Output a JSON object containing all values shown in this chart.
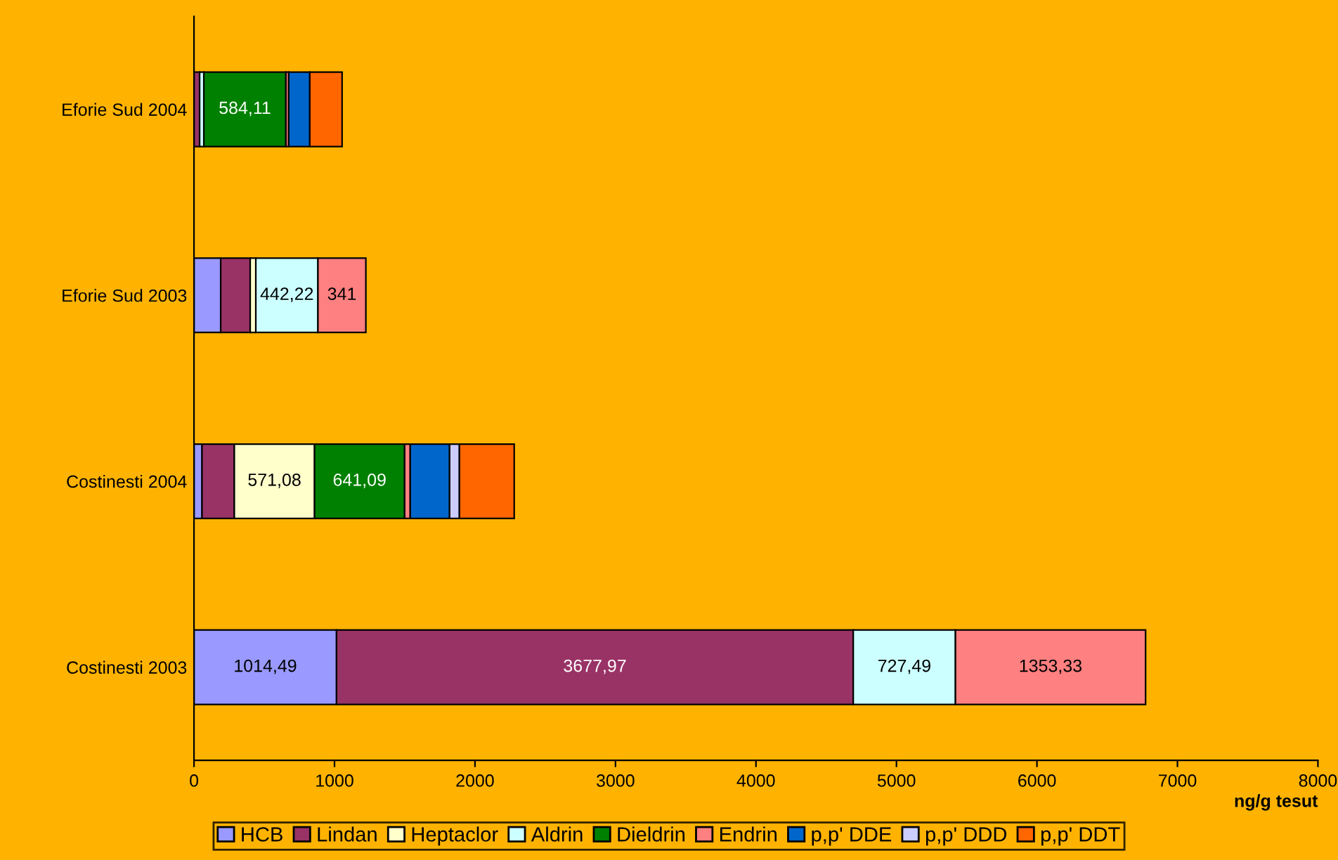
{
  "chart_data": {
    "type": "bar",
    "orientation": "horizontal",
    "stacked": true,
    "xlabel": "ng/g tesut",
    "categories": [
      "Eforie Sud 2004",
      "Eforie Sud 2003",
      "Costinesti 2004",
      "Costinesti 2003"
    ],
    "series": [
      {
        "name": "HCB",
        "color": "#9999ff",
        "values": [
          null,
          190,
          57,
          1014.49
        ],
        "value_labels": [
          null,
          null,
          null,
          "1014,49"
        ]
      },
      {
        "name": "Lindan",
        "color": "#993366",
        "values": [
          40,
          210,
          230,
          3677.97
        ],
        "value_labels": [
          null,
          null,
          null,
          "3677,97"
        ]
      },
      {
        "name": "Heptaclor",
        "color": "#ffffcc",
        "values": [
          null,
          40,
          571.08,
          null
        ],
        "value_labels": [
          null,
          null,
          "571,08",
          null
        ]
      },
      {
        "name": "Aldrin",
        "color": "#ccffff",
        "values": [
          30,
          442.22,
          null,
          727.49
        ],
        "value_labels": [
          null,
          "442,22",
          null,
          "727,49"
        ]
      },
      {
        "name": "Dieldrin",
        "color": "#008000",
        "values": [
          584.11,
          null,
          641.09,
          null
        ],
        "value_labels": [
          "584,11",
          null,
          "641,09",
          null
        ]
      },
      {
        "name": "Endrin",
        "color": "#ff8080",
        "values": [
          20,
          341,
          40,
          1353.33
        ],
        "value_labels": [
          null,
          "341",
          null,
          "1353,33"
        ]
      },
      {
        "name": "p,p' DDE",
        "color": "#0066cc",
        "values": [
          150,
          null,
          280,
          null
        ],
        "value_labels": [
          null,
          null,
          null,
          null
        ]
      },
      {
        "name": "p,p' DDD",
        "color": "#ccccff",
        "values": [
          null,
          null,
          70,
          null
        ],
        "value_labels": [
          null,
          null,
          null,
          null
        ]
      },
      {
        "name": "p,p' DDT",
        "color": "#ff6600",
        "values": [
          230,
          null,
          390,
          null
        ],
        "value_labels": [
          null,
          null,
          null,
          null
        ]
      }
    ],
    "xlim": [
      0,
      8000
    ],
    "xticks": [
      0,
      1000,
      2000,
      3000,
      4000,
      5000,
      6000,
      7000,
      8000
    ],
    "grid": false,
    "legend": "bottom"
  }
}
